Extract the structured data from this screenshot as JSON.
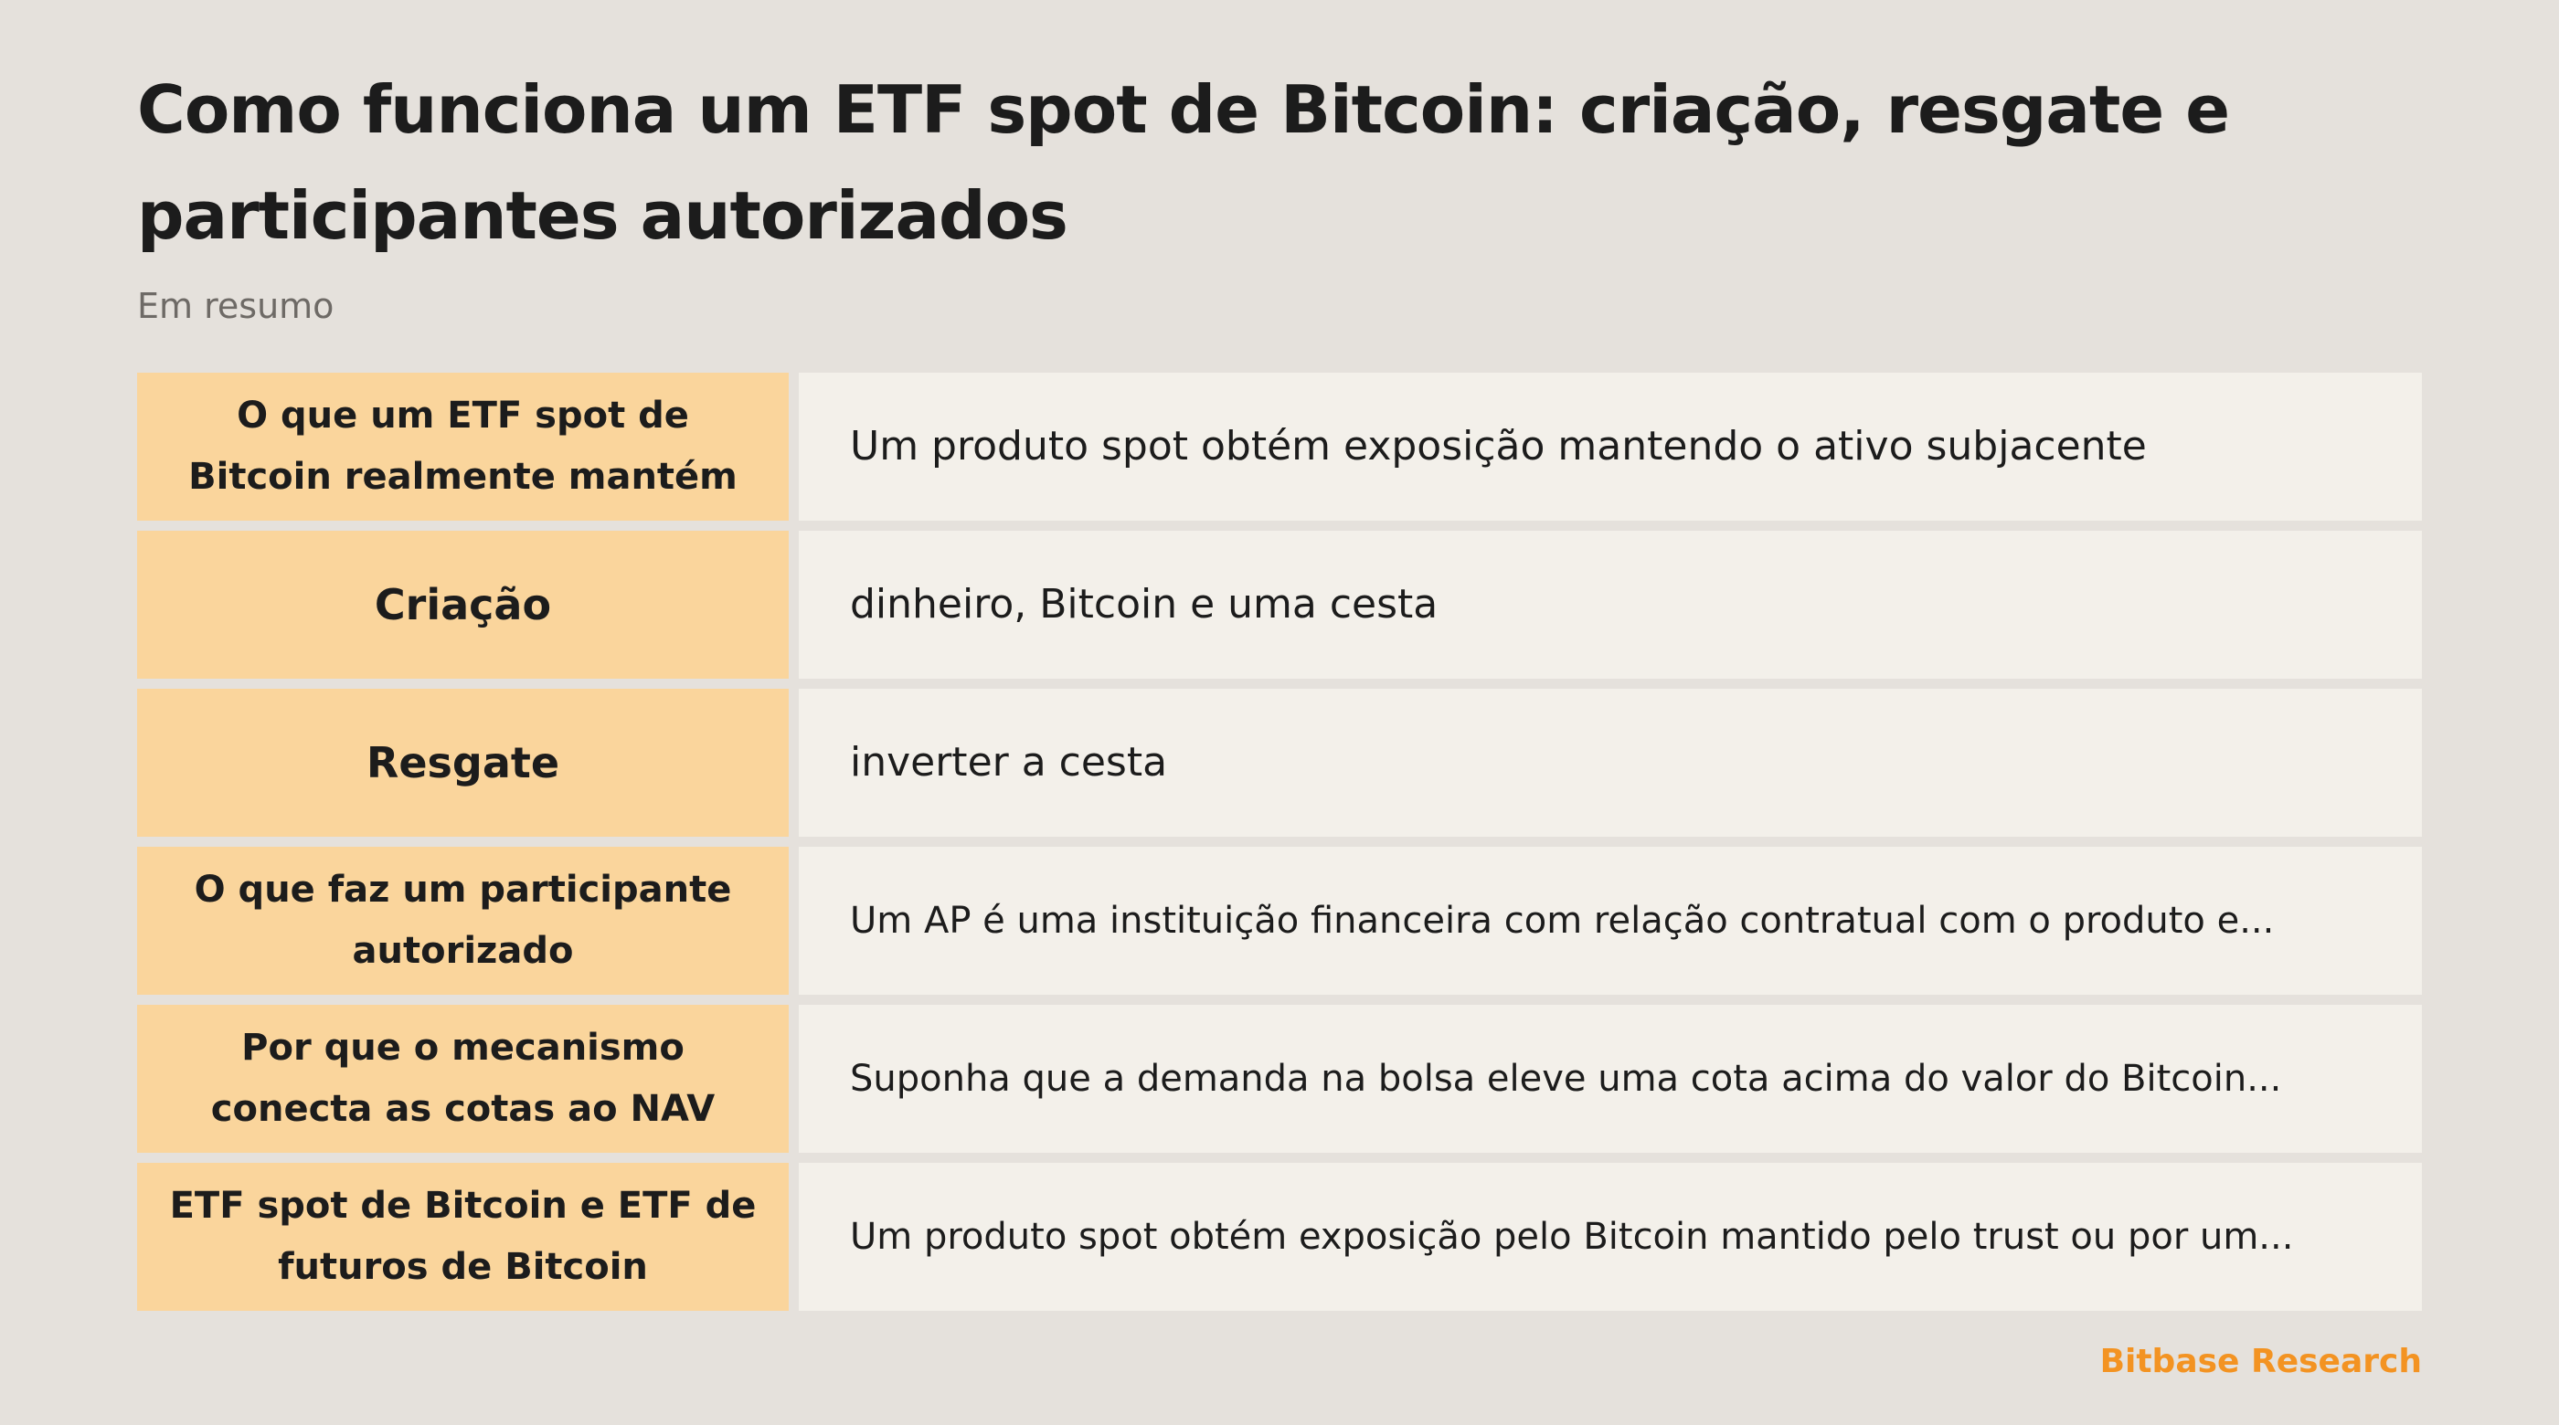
{
  "page": {
    "title": "Como funciona um ETF spot de Bitcoin: criação, resgate e participantes autorizados",
    "subtitle": "Em resumo"
  },
  "rows": [
    {
      "label": "O que um ETF spot de Bitcoin realmente mantém",
      "value": "Um produto spot obtém exposição mantendo o ativo subjacente"
    },
    {
      "label": "Criação",
      "value": "dinheiro, Bitcoin e uma cesta"
    },
    {
      "label": "Resgate",
      "value": "inverter a cesta"
    },
    {
      "label": "O que faz um participante autorizado",
      "value": "Um AP é uma instituição financeira com relação contratual com o produto e..."
    },
    {
      "label": "Por que o mecanismo conecta as cotas ao NAV",
      "value": "Suponha que a demanda na bolsa eleve uma cota acima do valor do Bitcoin..."
    },
    {
      "label": "ETF spot de Bitcoin e ETF de futuros de Bitcoin",
      "value": "Um produto spot obtém exposição pelo Bitcoin mantido pelo trust ou por um..."
    }
  ],
  "footer": {
    "brand": "Bitbase Research",
    "brand_color": "#f39322"
  },
  "colors": {
    "background": "#e5e1dc",
    "label_cell": "#fad59c",
    "value_cell": "#f3f0ea",
    "text": "#1c1c1c",
    "subtitle": "#6e6a66"
  }
}
